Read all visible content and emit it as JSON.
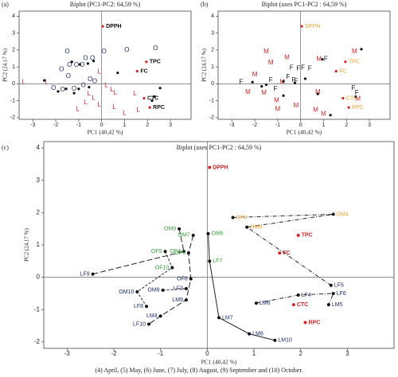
{
  "chart_data": [
    {
      "type": "scatter",
      "panel_label": "(a)",
      "title": "Biplot (PC1-PC2: 64,59 %)",
      "xlabel": "PC1 (40,42 %)",
      "ylabel": "PC2 (24,17 %)",
      "xlim": [
        -3.6,
        3.9
      ],
      "ylim": [
        -2.1,
        4.3
      ],
      "xticks": [
        -3,
        -2,
        -1,
        0,
        1,
        2,
        3
      ],
      "yticks": [
        -2,
        -1,
        0,
        1,
        2,
        3,
        4
      ],
      "series": [
        {
          "marker": "text",
          "marker_text": "O",
          "color": "#1f2a66",
          "x": [
            -1.5,
            -0.7,
            0.1,
            1.1,
            -1.4,
            -1.1,
            -0.85,
            -0.4,
            -1.75,
            -1.45,
            -0.5,
            -0.3,
            -2.1,
            -1.7,
            -1.2,
            -0.8,
            2.35
          ],
          "values": [
            1.9,
            1.5,
            1.9,
            2.0,
            1.1,
            1.1,
            1.1,
            1.5,
            0.85,
            0.45,
            0.25,
            0.15,
            -0.25,
            -0.35,
            -0.3,
            -0.1,
            2.1
          ]
        },
        {
          "marker": "text",
          "marker_text": "L",
          "color": "#c0262a",
          "x": [
            -3.4,
            -2.4,
            -0.1,
            0.2,
            0.45,
            0.6,
            -0.55,
            -0.35,
            -0.7,
            -0.1,
            0.55,
            1.0,
            1.6,
            1.45,
            -1.05
          ],
          "values": [
            0.1,
            0.1,
            0.7,
            -0.1,
            -0.35,
            -0.55,
            -0.6,
            -0.85,
            -1.1,
            -1.25,
            -1.4,
            -1.75,
            -1.55,
            -0.6,
            -1.5
          ]
        },
        {
          "marker": "dot",
          "color": "#111111",
          "x": [
            -2.5,
            -1.3,
            -0.95,
            -0.6,
            -0.35,
            -1.9,
            -1.55,
            -1.0,
            -0.55,
            0.7,
            2.55,
            2.3,
            2.2,
            -1.2
          ],
          "values": [
            0.2,
            1.3,
            1.15,
            1.2,
            1.35,
            -0.45,
            -0.3,
            -0.3,
            -0.2,
            0.65,
            -0.25,
            -0.75,
            -1.0,
            -0.55
          ]
        },
        {
          "marker": "dot",
          "color": "#d0262a",
          "label_color": "#111111",
          "bold": true,
          "label_side": "right",
          "labels": [
            "DPPH",
            "TPC",
            "FC",
            "CTC",
            "RPC"
          ],
          "x": [
            0.05,
            1.95,
            1.55,
            1.85,
            2.1
          ],
          "values": [
            3.4,
            1.3,
            0.75,
            -0.85,
            -1.4
          ]
        }
      ]
    },
    {
      "type": "scatter",
      "panel_label": "(b)",
      "title": "Biplot (axes PC1-PC2 : 64,59 %)",
      "xlabel": "PC1 (40,42 %)",
      "ylabel": "PC2 (24,17 %)",
      "xlim": [
        -3.6,
        3.9
      ],
      "ylim": [
        -2.1,
        4.3
      ],
      "xticks": [
        -3,
        -2,
        -1,
        0,
        1,
        2,
        3
      ],
      "yticks": [
        -2,
        -1,
        0,
        1,
        2,
        3,
        4
      ],
      "series": [
        {
          "marker": "text",
          "marker_text": "M",
          "color": "#c0262a",
          "x": [
            -1.5,
            -0.6,
            0.8,
            2.35,
            -1.3,
            -2.0,
            -0.8,
            -1.6,
            0.75,
            -2.3,
            -1.05,
            -0.2,
            0.65,
            1.0,
            -1.0,
            2.5
          ],
          "values": [
            1.9,
            1.55,
            1.45,
            1.9,
            1.25,
            0.55,
            0.1,
            -0.55,
            -0.5,
            -0.5,
            -1.0,
            -1.3,
            -1.55,
            -1.8,
            -1.5,
            -0.9
          ]
        },
        {
          "marker": "text",
          "marker_text": "F",
          "color": "#111111",
          "x": [
            1.1,
            -0.4,
            -0.1,
            0.1,
            0.4,
            -1.3,
            -0.55,
            -0.3,
            -0.2,
            2.3,
            2.45,
            -2.6,
            -1.1
          ],
          "values": [
            1.45,
            0.95,
            0.9,
            0.95,
            0.9,
            0.2,
            0.4,
            0.2,
            0.15,
            -0.25,
            -0.55,
            0.1,
            -0.3
          ]
        },
        {
          "marker": "dot",
          "color": "#111111",
          "x": [
            2.65,
            0.95,
            -1.5,
            -0.75,
            -0.25,
            0.2,
            -2.1,
            -1.7,
            0.75,
            -0.75,
            1.3,
            2.4
          ],
          "values": [
            2.05,
            1.45,
            -0.05,
            0.15,
            0.05,
            0.3,
            0.1,
            -0.15,
            -0.6,
            -0.7,
            -1.85,
            -0.75
          ]
        },
        {
          "marker": "dot",
          "color": "#d0262a",
          "label_color": "#e8a33a",
          "bold": false,
          "label_side": "right",
          "labels": [
            "DPPH",
            "TPC",
            "FC",
            "CTC",
            "RPC"
          ],
          "x": [
            0.05,
            1.95,
            1.55,
            1.85,
            2.1
          ],
          "values": [
            3.4,
            1.3,
            0.75,
            -0.85,
            -1.4
          ]
        }
      ]
    },
    {
      "type": "scatter",
      "panel_label": "(c)",
      "title": "Biplot (axes PC1-PC2 : 64,59 %)",
      "xlabel": "PC1 (40,42 %)",
      "ylabel": "PC2 (24,17 %)",
      "xlim": [
        -3.5,
        4
      ],
      "ylim": [
        -2.2,
        4.2
      ],
      "xticks": [
        -3,
        -2,
        -1,
        0,
        1,
        2,
        3
      ],
      "yticks": [
        -2,
        -1,
        0,
        1,
        2,
        3,
        4
      ],
      "series": [
        {
          "marker": "dot",
          "color": "#111111",
          "line": "5,2,1,2",
          "label_side": "right",
          "labels": [
            "OF6",
            "OM4",
            "OM6",
            "LF5"
          ],
          "label_colors": [
            "#e8a33a",
            "#e8a33a",
            "#e8a33a",
            "#1f2a66"
          ],
          "x": [
            0.55,
            2.7,
            0.85,
            2.65
          ],
          "values": [
            1.85,
            1.95,
            1.55,
            -0.25
          ]
        },
        {
          "marker": "dot",
          "color": "#111111",
          "line": "none",
          "label_side": "right",
          "labels": [
            "OM5",
            "LF7",
            "LM7",
            "LM8",
            "LM10"
          ],
          "label_colors": [
            "#3a9a3a",
            "#3a9a3a",
            "#1f2a66",
            "#1f2a66",
            "#1f2a66"
          ],
          "x": [
            0.02,
            0.05,
            0.25,
            0.9,
            1.45
          ],
          "values": [
            1.35,
            0.5,
            -1.25,
            -1.75,
            -1.95
          ]
        },
        {
          "marker": "dot",
          "color": "#111111",
          "line": "7,3",
          "label_side": "left",
          "labels": [
            "OM9",
            "OF4",
            "LF9"
          ],
          "label_colors": [
            "#3a9a3a",
            "#3a9a3a",
            "#1f2a66"
          ],
          "x": [
            -0.6,
            -0.5,
            -2.45
          ],
          "values": [
            1.5,
            0.8,
            0.1
          ]
        },
        {
          "marker": "dot",
          "color": "#111111",
          "line": "7,3",
          "label_side": "left",
          "labels": [
            "OM7",
            "OF9",
            "OF8",
            "LM9",
            "LM4",
            "LF10"
          ],
          "label_colors": [
            "#3a9a3a",
            "#3a9a3a",
            "#1f2a66",
            "#1f2a66",
            "#1f2a66",
            "#1f2a66"
          ],
          "x": [
            -0.3,
            -0.4,
            -0.35,
            -0.45,
            -1.0,
            -1.25
          ],
          "values": [
            1.3,
            0.75,
            -0.05,
            -0.7,
            -1.2,
            -1.45
          ]
        },
        {
          "marker": "dot",
          "color": "#111111",
          "line": "3,2",
          "label_side": "left",
          "labels": [
            "OF5",
            "OF10",
            "OM10",
            "LF8"
          ],
          "label_colors": [
            "#3a9a3a",
            "#3a9a3a",
            "#1f2a66",
            "#1f2a66"
          ],
          "x": [
            -0.9,
            -0.75,
            -1.5,
            -1.3
          ],
          "values": [
            0.8,
            0.3,
            -0.45,
            -0.9
          ]
        },
        {
          "marker": "dot",
          "color": "#111111",
          "line": "3,2",
          "label_side": "left",
          "labels": [
            "OM8",
            "LF3"
          ],
          "label_colors": [
            "#1f2a66",
            "#1f2a66"
          ],
          "x": [
            -0.95,
            -0.45
          ],
          "values": [
            -0.4,
            -0.35
          ]
        },
        {
          "marker": "dot",
          "color": "#111111",
          "line": "5,2,1,2",
          "label_side": "right",
          "labels": [
            "LM6",
            "LF4",
            "LF6",
            "LM5"
          ],
          "label_colors": [
            "#1f2a66",
            "#1f2a66",
            "#1f2a66",
            "#1f2a66"
          ],
          "x": [
            1.05,
            1.95,
            2.7,
            2.6
          ],
          "values": [
            -0.8,
            -0.55,
            -0.5,
            -0.85
          ]
        },
        {
          "marker": "dot",
          "color": "#d0262a",
          "label_color": "#c0262a",
          "bold": true,
          "label_side": "right",
          "labels": [
            "DPPH",
            "TPC",
            "FC",
            "CTC",
            "RPC"
          ],
          "x": [
            0.05,
            1.95,
            1.55,
            1.85,
            2.1
          ],
          "values": [
            3.4,
            1.3,
            0.75,
            -0.85,
            -1.4
          ]
        }
      ]
    }
  ],
  "caption": "(4) April, (5) May, (6) June, (7) July, (8) August, (9) September and (10) October."
}
